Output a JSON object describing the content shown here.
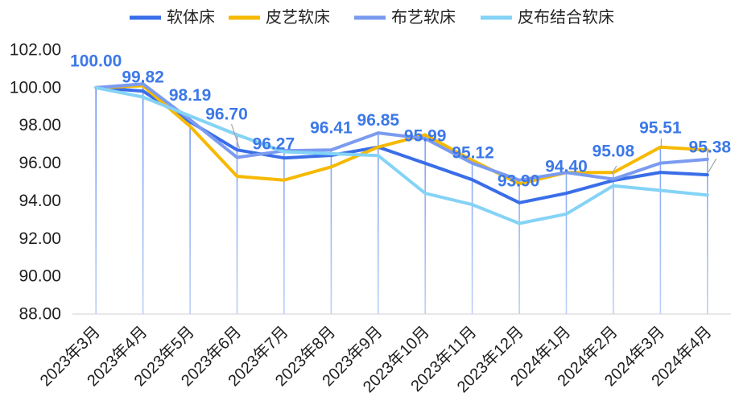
{
  "chart_data": {
    "type": "line",
    "categories": [
      "2023年3月",
      "2023年4月",
      "2023年5月",
      "2023年6月",
      "2023年7月",
      "2023年8月",
      "2023年9月",
      "2023年10月",
      "2023年11月",
      "2023年12月",
      "2024年1月",
      "2024年2月",
      "2024年3月",
      "2024年4月"
    ],
    "series": [
      {
        "name": "软体床",
        "color": "#3A6EE8",
        "values": [
          100.0,
          99.82,
          98.19,
          96.7,
          96.27,
          96.41,
          96.85,
          95.99,
          95.12,
          93.9,
          94.4,
          95.08,
          95.51,
          95.38
        ],
        "data_labels": [
          "100.00",
          "99.82",
          "98.19",
          "96.70",
          "96.27",
          "96.41",
          "96.85",
          "95.99",
          "95.12",
          "93.90",
          "94.40",
          "95.08",
          "95.51",
          "95.38"
        ]
      },
      {
        "name": "皮艺软床",
        "color": "#F6B900",
        "values": [
          100.0,
          100.1,
          97.95,
          95.3,
          95.1,
          95.8,
          96.85,
          97.5,
          96.15,
          94.9,
          95.5,
          95.5,
          96.85,
          96.7
        ]
      },
      {
        "name": "布艺软床",
        "color": "#7B9BF0",
        "values": [
          100.0,
          100.2,
          98.3,
          96.3,
          96.65,
          96.7,
          97.6,
          97.3,
          96.0,
          95.1,
          95.5,
          95.15,
          96.0,
          96.2
        ]
      },
      {
        "name": "皮布结合软床",
        "color": "#84D3F6",
        "values": [
          100.0,
          99.5,
          98.5,
          97.5,
          96.6,
          96.5,
          96.4,
          94.4,
          93.8,
          92.8,
          93.3,
          94.8,
          94.55,
          94.3
        ]
      }
    ],
    "ylim": [
      88,
      102
    ],
    "yticks": [
      "88.00",
      "90.00",
      "92.00",
      "94.00",
      "96.00",
      "98.00",
      "100.00",
      "102.00"
    ],
    "legend": "top",
    "grid": false,
    "drop_lines": true
  }
}
